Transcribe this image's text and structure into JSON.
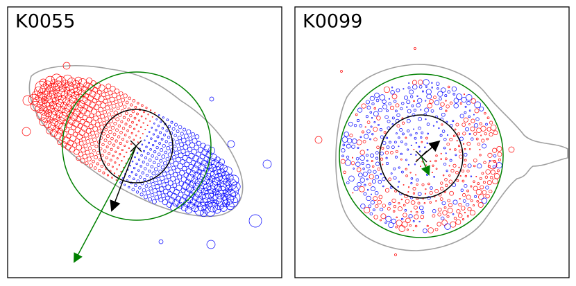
{
  "panels": [
    {
      "label": "K0055"
    },
    {
      "label": "K0099"
    }
  ]
}
